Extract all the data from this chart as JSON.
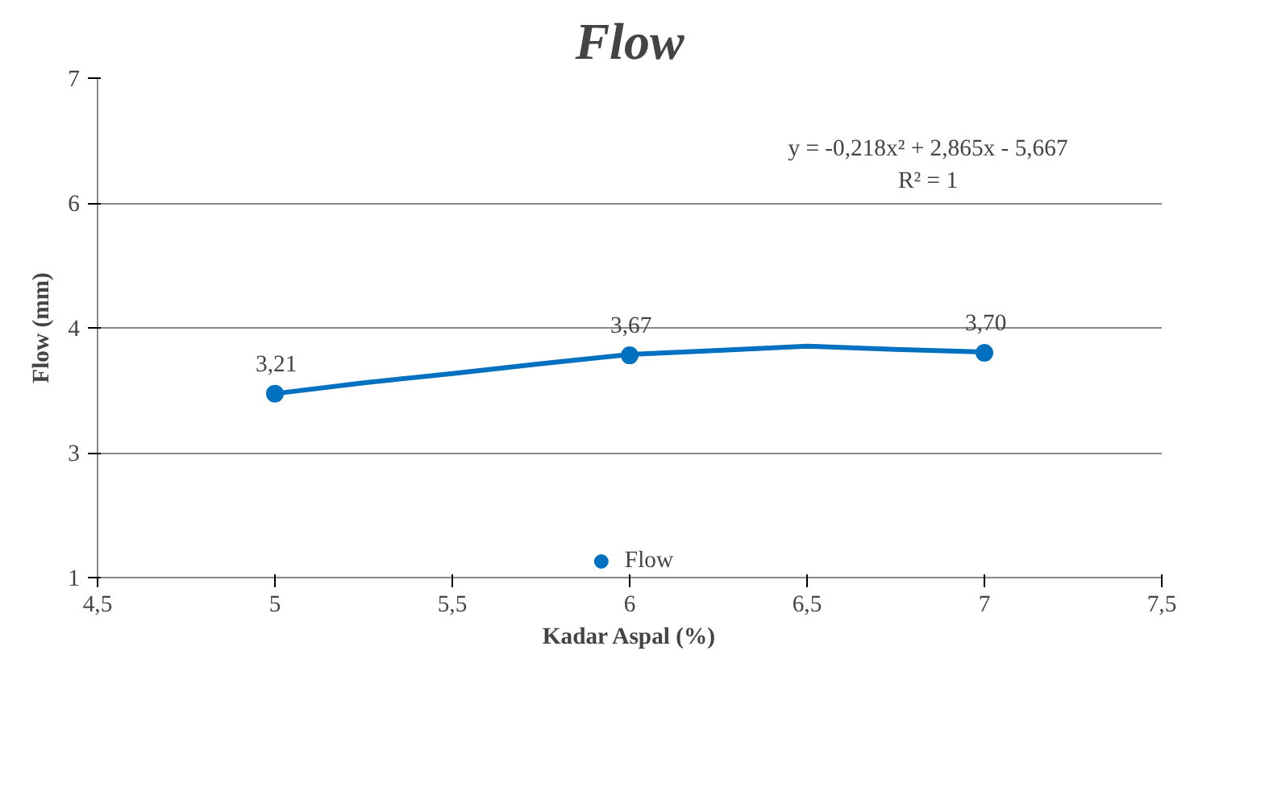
{
  "chart_data": {
    "type": "scatter",
    "title": "Flow",
    "xlabel": "Kadar Aspal (%)",
    "ylabel": "Flow (mm)",
    "xlim": [
      4.5,
      7.5
    ],
    "xticks": [
      {
        "value": 4.5,
        "label": "4,5"
      },
      5,
      {
        "value": 5.5,
        "label": "5,5"
      },
      6,
      {
        "value": 6.5,
        "label": "6,5"
      },
      7,
      {
        "value": 7.5,
        "label": "7,5"
      }
    ],
    "ylim": [
      1,
      7
    ],
    "yticks": [
      1,
      {
        "value": 2.5,
        "label": "3"
      },
      4,
      {
        "value": 5.5,
        "label": "6"
      },
      7
    ],
    "grid": "y",
    "legend": "bottom",
    "series": [
      {
        "name": "Flow",
        "marker": "circle",
        "color": "#0070c0",
        "x": [
          5,
          6,
          7
        ],
        "values": [
          3.21,
          3.67,
          3.7
        ],
        "value_labels": [
          "3,21",
          "3,67",
          "3,70"
        ]
      },
      {
        "type": "line",
        "color": "#0070c0",
        "x": [
          5,
          5.25,
          5.5,
          5.75,
          6,
          6.25,
          6.5,
          6.75,
          7
        ],
        "values": [
          3.21,
          3.34,
          3.45,
          3.57,
          3.68,
          3.73,
          3.78,
          3.74,
          3.71
        ]
      }
    ],
    "annotations": [
      "y = -0,218x² + 2,865x - 5,667",
      "R² = 1"
    ]
  }
}
